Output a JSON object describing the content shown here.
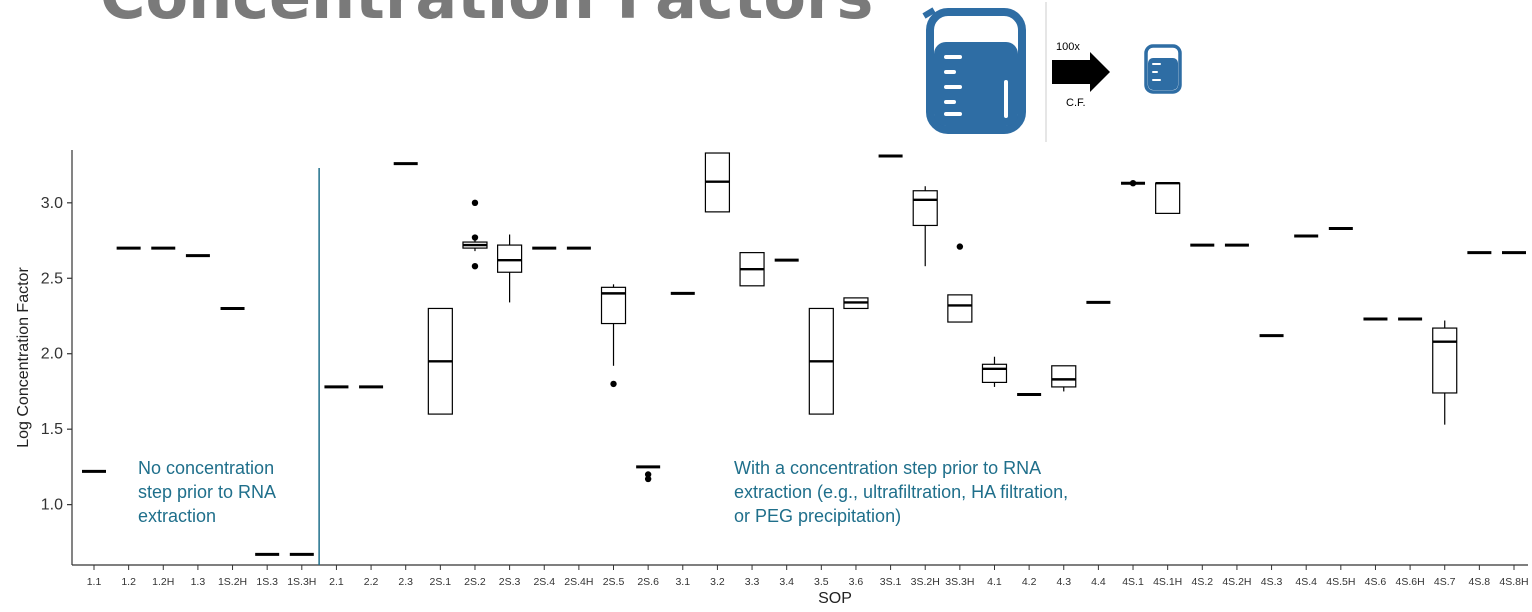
{
  "page_title": "Concentration Factors",
  "graphic": {
    "icon": "beaker-icon",
    "arrow_label_top": "100x",
    "arrow_label_bottom": "C.F.",
    "beaker_color": "#2e6da4"
  },
  "chart_data": {
    "type": "box",
    "xlabel": "SOP",
    "ylabel": "Log Concentration Factor",
    "ylim": [
      0.6,
      3.35
    ],
    "yticks": [
      1.0,
      1.5,
      2.0,
      2.5,
      3.0
    ],
    "grid": false,
    "categories": [
      "1.1",
      "1.2",
      "1.2H",
      "1.3",
      "1S.2H",
      "1S.3",
      "1S.3H",
      "2.1",
      "2.2",
      "2.3",
      "2S.1",
      "2S.2",
      "2S.3",
      "2S.4",
      "2S.4H",
      "2S.5",
      "2S.6",
      "3.1",
      "3.2",
      "3.3",
      "3.4",
      "3.5",
      "3.6",
      "3S.1",
      "3S.2H",
      "3S.3H",
      "4.1",
      "4.2",
      "4.3",
      "4.4",
      "4S.1",
      "4S.1H",
      "4S.2",
      "4S.2H",
      "4S.3",
      "4S.4",
      "4S.5H",
      "4S.6",
      "4S.6H",
      "4S.7",
      "4S.8",
      "4S.8H"
    ],
    "boxes": [
      {
        "q1": 1.22,
        "med": 1.22,
        "q3": 1.22,
        "lo": 1.22,
        "hi": 1.22,
        "out": []
      },
      {
        "q1": 2.7,
        "med": 2.7,
        "q3": 2.7,
        "lo": 2.7,
        "hi": 2.7,
        "out": []
      },
      {
        "q1": 2.7,
        "med": 2.7,
        "q3": 2.7,
        "lo": 2.7,
        "hi": 2.7,
        "out": []
      },
      {
        "q1": 2.65,
        "med": 2.65,
        "q3": 2.65,
        "lo": 2.65,
        "hi": 2.65,
        "out": []
      },
      {
        "q1": 2.3,
        "med": 2.3,
        "q3": 2.3,
        "lo": 2.3,
        "hi": 2.3,
        "out": []
      },
      {
        "q1": 0.67,
        "med": 0.67,
        "q3": 0.67,
        "lo": 0.67,
        "hi": 0.67,
        "out": []
      },
      {
        "q1": 0.67,
        "med": 0.67,
        "q3": 0.67,
        "lo": 0.67,
        "hi": 0.67,
        "out": []
      },
      {
        "q1": 1.78,
        "med": 1.78,
        "q3": 1.78,
        "lo": 1.78,
        "hi": 1.78,
        "out": []
      },
      {
        "q1": 1.78,
        "med": 1.78,
        "q3": 1.78,
        "lo": 1.78,
        "hi": 1.78,
        "out": []
      },
      {
        "q1": 3.26,
        "med": 3.26,
        "q3": 3.26,
        "lo": 3.26,
        "hi": 3.26,
        "out": []
      },
      {
        "q1": 1.6,
        "med": 1.95,
        "q3": 2.3,
        "lo": 1.6,
        "hi": 2.3,
        "out": []
      },
      {
        "q1": 2.7,
        "med": 2.72,
        "q3": 2.74,
        "lo": 2.68,
        "hi": 2.76,
        "out": [
          3.0,
          2.77,
          2.58
        ]
      },
      {
        "q1": 2.54,
        "med": 2.62,
        "q3": 2.72,
        "lo": 2.34,
        "hi": 2.79,
        "out": []
      },
      {
        "q1": 2.7,
        "med": 2.7,
        "q3": 2.7,
        "lo": 2.7,
        "hi": 2.7,
        "out": []
      },
      {
        "q1": 2.7,
        "med": 2.7,
        "q3": 2.7,
        "lo": 2.7,
        "hi": 2.7,
        "out": []
      },
      {
        "q1": 2.2,
        "med": 2.4,
        "q3": 2.44,
        "lo": 1.92,
        "hi": 2.46,
        "out": [
          1.8
        ]
      },
      {
        "q1": 1.25,
        "med": 1.25,
        "q3": 1.25,
        "lo": 1.25,
        "hi": 1.25,
        "out": [
          1.2,
          1.17
        ]
      },
      {
        "q1": 2.4,
        "med": 2.4,
        "q3": 2.4,
        "lo": 2.4,
        "hi": 2.4,
        "out": []
      },
      {
        "q1": 2.94,
        "med": 3.14,
        "q3": 3.33,
        "lo": 2.94,
        "hi": 3.33,
        "out": []
      },
      {
        "q1": 2.45,
        "med": 2.56,
        "q3": 2.67,
        "lo": 2.45,
        "hi": 2.67,
        "out": []
      },
      {
        "q1": 2.62,
        "med": 2.62,
        "q3": 2.62,
        "lo": 2.62,
        "hi": 2.62,
        "out": []
      },
      {
        "q1": 1.6,
        "med": 1.95,
        "q3": 2.3,
        "lo": 1.6,
        "hi": 2.3,
        "out": []
      },
      {
        "q1": 2.3,
        "med": 2.34,
        "q3": 2.37,
        "lo": 2.3,
        "hi": 2.37,
        "out": []
      },
      {
        "q1": 3.31,
        "med": 3.31,
        "q3": 3.31,
        "lo": 3.31,
        "hi": 3.31,
        "out": []
      },
      {
        "q1": 2.85,
        "med": 3.02,
        "q3": 3.08,
        "lo": 2.58,
        "hi": 3.11,
        "out": []
      },
      {
        "q1": 2.21,
        "med": 2.32,
        "q3": 2.39,
        "lo": 2.21,
        "hi": 2.39,
        "out": [
          2.71
        ]
      },
      {
        "q1": 1.81,
        "med": 1.9,
        "q3": 1.93,
        "lo": 1.78,
        "hi": 1.98,
        "out": []
      },
      {
        "q1": 1.73,
        "med": 1.73,
        "q3": 1.73,
        "lo": 1.73,
        "hi": 1.73,
        "out": []
      },
      {
        "q1": 1.78,
        "med": 1.83,
        "q3": 1.92,
        "lo": 1.75,
        "hi": 1.92,
        "out": []
      },
      {
        "q1": 2.34,
        "med": 2.34,
        "q3": 2.34,
        "lo": 2.34,
        "hi": 2.34,
        "out": []
      },
      {
        "q1": 3.13,
        "med": 3.13,
        "q3": 3.13,
        "lo": 3.13,
        "hi": 3.13,
        "out": [
          3.13
        ]
      },
      {
        "q1": 2.93,
        "med": 3.13,
        "q3": 3.13,
        "lo": 2.93,
        "hi": 3.13,
        "out": []
      },
      {
        "q1": 2.72,
        "med": 2.72,
        "q3": 2.72,
        "lo": 2.72,
        "hi": 2.72,
        "out": []
      },
      {
        "q1": 2.72,
        "med": 2.72,
        "q3": 2.72,
        "lo": 2.72,
        "hi": 2.72,
        "out": []
      },
      {
        "q1": 2.12,
        "med": 2.12,
        "q3": 2.12,
        "lo": 2.12,
        "hi": 2.12,
        "out": []
      },
      {
        "q1": 2.78,
        "med": 2.78,
        "q3": 2.78,
        "lo": 2.78,
        "hi": 2.78,
        "out": []
      },
      {
        "q1": 2.83,
        "med": 2.83,
        "q3": 2.83,
        "lo": 2.83,
        "hi": 2.83,
        "out": []
      },
      {
        "q1": 2.23,
        "med": 2.23,
        "q3": 2.23,
        "lo": 2.23,
        "hi": 2.23,
        "out": []
      },
      {
        "q1": 2.23,
        "med": 2.23,
        "q3": 2.23,
        "lo": 2.23,
        "hi": 2.23,
        "out": []
      },
      {
        "q1": 1.74,
        "med": 2.08,
        "q3": 2.17,
        "lo": 1.53,
        "hi": 2.22,
        "out": []
      },
      {
        "q1": 2.67,
        "med": 2.67,
        "q3": 2.67,
        "lo": 2.67,
        "hi": 2.67,
        "out": []
      },
      {
        "q1": 2.67,
        "med": 2.67,
        "q3": 2.67,
        "lo": 2.67,
        "hi": 2.67,
        "out": []
      }
    ],
    "divider_after": "1S.3H",
    "annotations": [
      {
        "lines": [
          "No concentration",
          "step prior to RNA",
          "extraction"
        ]
      },
      {
        "lines": [
          "With a concentration step prior to RNA",
          "extraction (e.g., ultrafiltration, HA filtration,",
          "or PEG precipitation)"
        ]
      }
    ],
    "annotation_color": "#1f6f8b",
    "divider_color": "#1f6f8b"
  }
}
